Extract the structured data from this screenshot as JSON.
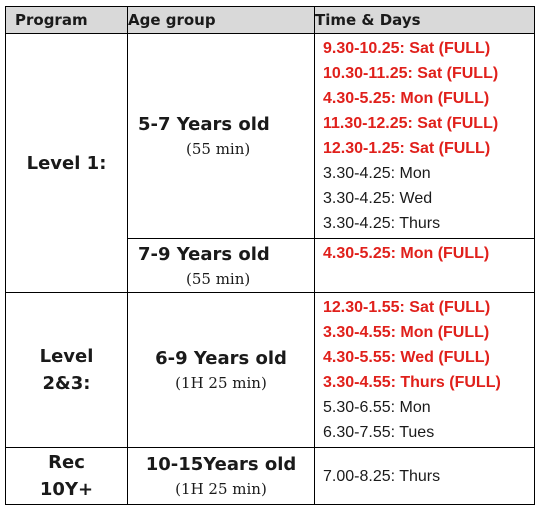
{
  "header": {
    "program": "Program",
    "age_group": "Age group",
    "time_days": "Time & Days"
  },
  "rows": [
    {
      "program": "Level 1:",
      "groups": [
        {
          "age": "5-7 Years old",
          "duration": "(55 min)",
          "slots": [
            {
              "text": "9.30-10.25: Sat (FULL)",
              "full": true
            },
            {
              "text": "10.30-11.25: Sat (FULL)",
              "full": true
            },
            {
              "text": "4.30-5.25: Mon (FULL)",
              "full": true
            },
            {
              "text": "11.30-12.25: Sat (FULL)",
              "full": true
            },
            {
              "text": "12.30-1.25: Sat (FULL)",
              "full": true
            },
            {
              "text": "3.30-4.25: Mon",
              "full": false
            },
            {
              "text": "3.30-4.25: Wed",
              "full": false
            },
            {
              "text": "3.30-4.25: Thurs",
              "full": false
            }
          ]
        },
        {
          "age": "7-9 Years old",
          "duration": "(55 min)",
          "slots": [
            {
              "text": "4.30-5.25: Mon (FULL)",
              "full": true
            }
          ]
        }
      ]
    },
    {
      "program_line1": "Level",
      "program_line2": "2&3:",
      "age": "6-9 Years old",
      "duration": "(1H 25 min)",
      "slots": [
        {
          "text": "12.30-1.55: Sat (FULL)",
          "full": true
        },
        {
          "text": "3.30-4.55: Mon (FULL)",
          "full": true
        },
        {
          "text": "4.30-5.55: Wed (FULL)",
          "full": true
        },
        {
          "text": "3.30-4.55: Thurs (FULL)",
          "full": true
        },
        {
          "text": "5.30-6.55: Mon",
          "full": false
        },
        {
          "text": "6.30-7.55: Tues",
          "full": false
        }
      ]
    },
    {
      "program_line1": "Rec",
      "program_line2": "10Y+",
      "age": "10-15Years old",
      "duration": "(1H 25 min)",
      "slots": [
        {
          "text": "7.00-8.25: Thurs",
          "full": false
        }
      ]
    }
  ],
  "colors": {
    "full_text": "#e0201b",
    "header_bg": "#d9d9d9",
    "border": "#000000"
  }
}
